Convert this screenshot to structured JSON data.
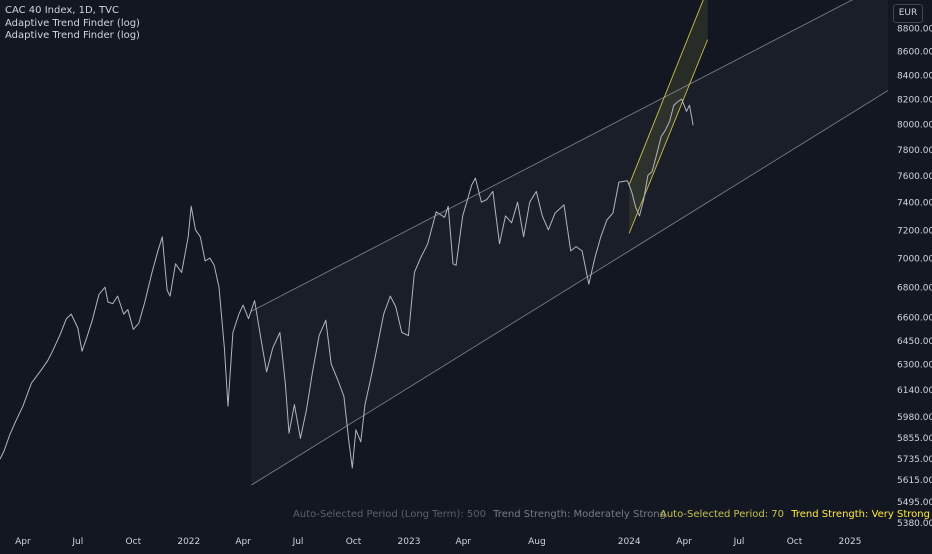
{
  "legend": {
    "symbol": "CAC 40 Index, 1D, TVC",
    "indicator_1": "Adaptive Trend Finder (log)",
    "indicator_2": "Adaptive Trend Finder (log)"
  },
  "currency_button": "EUR",
  "info": {
    "long_period_label": "Auto-Selected Period (Long Term):",
    "long_period_value": "500",
    "long_strength_label": "Trend Strength:",
    "long_strength_value": "Moderately Strong",
    "short_period_label": "Auto-Selected Period:",
    "short_period_value": "70",
    "short_strength_label": "Trend Strength:",
    "short_strength_value": "Very Strong"
  },
  "colors": {
    "background": "#131722",
    "price_line": "#b2b5be",
    "long_channel": "#787b86",
    "short_channel": "#c7c24a",
    "long_info_text": "#5d606b",
    "short_info_label": "#c7c24a",
    "short_info_value": "#ffeb3b"
  },
  "chart_data": {
    "type": "line",
    "scale": "log",
    "title": "CAC 40 Index, 1D, TVC",
    "xlabel": "",
    "ylabel": "",
    "x_tick_labels": [
      "Apr",
      "Jul",
      "Oct",
      "2022",
      "Apr",
      "Jul",
      "Oct",
      "2023",
      "Apr",
      "Aug",
      "2024",
      "Apr",
      "Jul",
      "Oct",
      "2025"
    ],
    "y_tick_labels": [
      "8800.00",
      "8600.00",
      "8400.00",
      "8200.00",
      "8000.00",
      "7800.00",
      "7600.00",
      "7400.00",
      "7200.00",
      "7000.00",
      "6800.00",
      "6600.00",
      "6450.00",
      "6300.00",
      "6140.00",
      "5980.00",
      "5855.00",
      "5735.00",
      "5615.00",
      "5495.00",
      "5380.00"
    ],
    "y_ticks": [
      8800,
      8600,
      8400,
      8200,
      8000,
      7800,
      7600,
      7400,
      7200,
      7000,
      6800,
      6600,
      6450,
      6300,
      6140,
      5980,
      5855,
      5735,
      5615,
      5495,
      5380
    ],
    "ylim": [
      5340,
      9050
    ],
    "xlim": [
      "2021-02-22",
      "2025-03-05"
    ],
    "x_ticks": [
      "2021-04-01",
      "2021-07-01",
      "2021-10-01",
      "2022-01-01",
      "2022-04-01",
      "2022-07-01",
      "2022-10-01",
      "2023-01-01",
      "2023-04-01",
      "2023-08-01",
      "2024-01-01",
      "2024-04-01",
      "2024-07-01",
      "2024-10-01",
      "2025-01-01"
    ],
    "series": [
      {
        "name": "CAC 40 Index",
        "points": [
          [
            "2021-02-22",
            5730
          ],
          [
            "2021-03-01",
            5780
          ],
          [
            "2021-03-10",
            5870
          ],
          [
            "2021-03-20",
            5950
          ],
          [
            "2021-04-01",
            6040
          ],
          [
            "2021-04-15",
            6180
          ],
          [
            "2021-05-01",
            6260
          ],
          [
            "2021-05-12",
            6320
          ],
          [
            "2021-05-20",
            6380
          ],
          [
            "2021-06-01",
            6480
          ],
          [
            "2021-06-12",
            6590
          ],
          [
            "2021-06-20",
            6620
          ],
          [
            "2021-07-01",
            6530
          ],
          [
            "2021-07-08",
            6380
          ],
          [
            "2021-07-16",
            6470
          ],
          [
            "2021-07-25",
            6580
          ],
          [
            "2021-08-05",
            6750
          ],
          [
            "2021-08-15",
            6800
          ],
          [
            "2021-08-20",
            6700
          ],
          [
            "2021-08-28",
            6690
          ],
          [
            "2021-09-05",
            6740
          ],
          [
            "2021-09-15",
            6620
          ],
          [
            "2021-09-22",
            6650
          ],
          [
            "2021-10-01",
            6520
          ],
          [
            "2021-10-10",
            6560
          ],
          [
            "2021-10-20",
            6700
          ],
          [
            "2021-11-01",
            6900
          ],
          [
            "2021-11-10",
            7040
          ],
          [
            "2021-11-18",
            7150
          ],
          [
            "2021-11-26",
            6780
          ],
          [
            "2021-12-01",
            6740
          ],
          [
            "2021-12-10",
            6960
          ],
          [
            "2021-12-20",
            6900
          ],
          [
            "2021-12-31",
            7150
          ],
          [
            "2022-01-05",
            7370
          ],
          [
            "2022-01-12",
            7200
          ],
          [
            "2022-01-20",
            7150
          ],
          [
            "2022-01-28",
            6980
          ],
          [
            "2022-02-05",
            7000
          ],
          [
            "2022-02-12",
            6950
          ],
          [
            "2022-02-20",
            6800
          ],
          [
            "2022-03-01",
            6400
          ],
          [
            "2022-03-07",
            6040
          ],
          [
            "2022-03-15",
            6500
          ],
          [
            "2022-03-25",
            6620
          ],
          [
            "2022-04-01",
            6680
          ],
          [
            "2022-04-10",
            6590
          ],
          [
            "2022-04-20",
            6710
          ],
          [
            "2022-05-01",
            6450
          ],
          [
            "2022-05-10",
            6250
          ],
          [
            "2022-05-20",
            6400
          ],
          [
            "2022-06-01",
            6500
          ],
          [
            "2022-06-10",
            6180
          ],
          [
            "2022-06-16",
            5880
          ],
          [
            "2022-06-25",
            6050
          ],
          [
            "2022-07-05",
            5850
          ],
          [
            "2022-07-15",
            6020
          ],
          [
            "2022-07-25",
            6250
          ],
          [
            "2022-08-05",
            6480
          ],
          [
            "2022-08-16",
            6580
          ],
          [
            "2022-08-25",
            6300
          ],
          [
            "2022-09-05",
            6200
          ],
          [
            "2022-09-15",
            6100
          ],
          [
            "2022-09-23",
            5840
          ],
          [
            "2022-09-29",
            5680
          ],
          [
            "2022-10-05",
            5900
          ],
          [
            "2022-10-13",
            5830
          ],
          [
            "2022-10-20",
            6050
          ],
          [
            "2022-11-01",
            6250
          ],
          [
            "2022-11-10",
            6420
          ],
          [
            "2022-11-20",
            6620
          ],
          [
            "2022-12-01",
            6740
          ],
          [
            "2022-12-10",
            6670
          ],
          [
            "2022-12-20",
            6500
          ],
          [
            "2022-12-31",
            6480
          ],
          [
            "2023-01-10",
            6900
          ],
          [
            "2023-01-20",
            7000
          ],
          [
            "2023-02-01",
            7100
          ],
          [
            "2023-02-15",
            7330
          ],
          [
            "2023-03-01",
            7290
          ],
          [
            "2023-03-07",
            7370
          ],
          [
            "2023-03-15",
            6960
          ],
          [
            "2023-03-20",
            6950
          ],
          [
            "2023-03-31",
            7300
          ],
          [
            "2023-04-15",
            7530
          ],
          [
            "2023-04-21",
            7580
          ],
          [
            "2023-05-01",
            7400
          ],
          [
            "2023-05-10",
            7420
          ],
          [
            "2023-05-20",
            7480
          ],
          [
            "2023-05-31",
            7100
          ],
          [
            "2023-06-10",
            7300
          ],
          [
            "2023-06-20",
            7250
          ],
          [
            "2023-06-30",
            7400
          ],
          [
            "2023-07-10",
            7150
          ],
          [
            "2023-07-20",
            7400
          ],
          [
            "2023-07-31",
            7480
          ],
          [
            "2023-08-10",
            7300
          ],
          [
            "2023-08-20",
            7200
          ],
          [
            "2023-08-31",
            7320
          ],
          [
            "2023-09-15",
            7380
          ],
          [
            "2023-09-26",
            7050
          ],
          [
            "2023-10-05",
            7080
          ],
          [
            "2023-10-15",
            7050
          ],
          [
            "2023-10-26",
            6820
          ],
          [
            "2023-11-05",
            7000
          ],
          [
            "2023-11-15",
            7150
          ],
          [
            "2023-11-25",
            7270
          ],
          [
            "2023-12-05",
            7320
          ],
          [
            "2023-12-15",
            7550
          ],
          [
            "2023-12-29",
            7560
          ],
          [
            "2024-01-05",
            7480
          ],
          [
            "2024-01-12",
            7360
          ],
          [
            "2024-01-18",
            7300
          ],
          [
            "2024-01-25",
            7420
          ],
          [
            "2024-02-01",
            7600
          ],
          [
            "2024-02-08",
            7630
          ],
          [
            "2024-02-15",
            7750
          ],
          [
            "2024-02-23",
            7900
          ],
          [
            "2024-03-01",
            7950
          ],
          [
            "2024-03-08",
            8020
          ],
          [
            "2024-03-15",
            8150
          ],
          [
            "2024-03-22",
            8180
          ],
          [
            "2024-03-28",
            8200
          ],
          [
            "2024-04-05",
            8100
          ],
          [
            "2024-04-10",
            8150
          ],
          [
            "2024-04-16",
            7990
          ]
        ]
      }
    ],
    "channels": [
      {
        "name": "Long Term",
        "period": 500,
        "start": "2022-04-15",
        "end": "2025-03-05",
        "upper": [
          6640,
          9220
        ],
        "lower": [
          5585,
          8270
        ]
      },
      {
        "name": "Short Term",
        "period": 70,
        "start": "2024-01-01",
        "end": "2024-05-10",
        "upper": [
          7530,
          9150
        ],
        "lower": [
          7175,
          8700
        ]
      }
    ]
  }
}
